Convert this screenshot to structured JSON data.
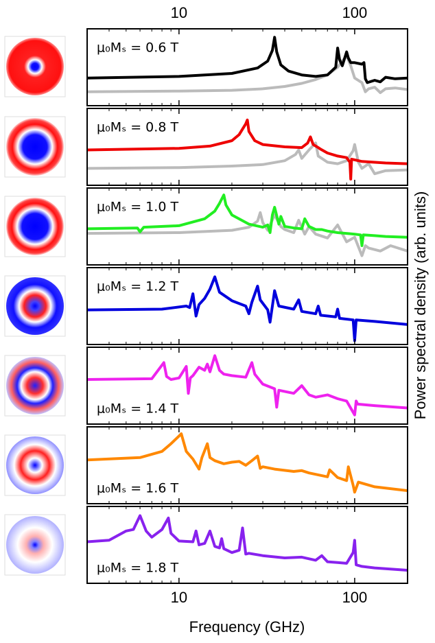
{
  "chart_data": {
    "type": "line",
    "xlabel": "Frequency (GHz)",
    "ylabel": "Power spectral density (arb. units)",
    "xscale": "log",
    "xlim": [
      3,
      200
    ],
    "xticks": [
      10,
      100
    ],
    "xminor": [
      3,
      4,
      5,
      6,
      7,
      8,
      9,
      20,
      30,
      40,
      50,
      60,
      70,
      80,
      90,
      200
    ],
    "ylim": [
      0,
      10
    ],
    "panels": [
      {
        "annotation": "μ₀Mₛ = 0.6 T",
        "label_corner": "upper left",
        "series": [
          {
            "color": "#bbbbbb",
            "x": [
              3,
              10,
              20,
              30,
              40,
              50,
              60,
              70,
              80,
              85,
              90,
              95,
              100,
              110,
              115,
              120,
              130,
              140,
              150,
              170,
              200
            ],
            "values": [
              1.8,
              1.9,
              2.0,
              2.2,
              2.5,
              2.9,
              3.4,
              4.0,
              5.0,
              5.8,
              6.5,
              5.2,
              3.6,
              3.0,
              1.8,
              2.2,
              2.4,
              1.7,
              2.2,
              2.3,
              2.1
            ]
          },
          {
            "color": "#000000",
            "x": [
              3,
              10,
              20,
              28,
              32,
              34,
              35,
              36,
              38,
              42,
              50,
              60,
              70,
              78,
              80,
              82,
              85,
              90,
              92,
              95,
              100,
              110,
              113,
              115,
              118,
              130,
              140,
              150,
              170,
              200
            ],
            "values": [
              3.6,
              3.8,
              4.2,
              4.9,
              5.8,
              7.2,
              8.9,
              7.0,
              5.3,
              4.5,
              4.0,
              3.8,
              4.0,
              5.0,
              7.5,
              6.0,
              5.2,
              7.0,
              6.2,
              5.6,
              5.6,
              5.4,
              5.6,
              3.5,
              3.0,
              3.3,
              3.1,
              3.7,
              3.5,
              3.6
            ]
          }
        ]
      },
      {
        "annotation": "μ₀Mₛ = 0.8 T",
        "label_corner": "upper left",
        "series": [
          {
            "color": "#bbbbbb",
            "x": [
              3,
              10,
              20,
              30,
              40,
              46,
              48,
              50,
              55,
              60,
              62,
              65,
              70,
              80,
              90,
              98,
              100,
              105,
              110,
              120,
              130,
              150,
              200
            ],
            "values": [
              2.2,
              2.3,
              2.5,
              2.7,
              3.2,
              4.0,
              4.6,
              3.5,
              4.6,
              5.5,
              3.8,
              3.5,
              3.0,
              2.8,
              3.2,
              4.5,
              5.3,
              3.0,
              2.2,
              2.8,
              1.5,
              1.9,
              2.0
            ]
          },
          {
            "color": "#ee0000",
            "x": [
              3,
              10,
              15,
              20,
              22,
              24,
              24.5,
              25,
              27,
              30,
              40,
              50,
              54,
              56,
              58,
              62,
              64,
              70,
              80,
              90,
              94,
              95,
              96,
              110,
              150,
              200
            ],
            "values": [
              4.6,
              4.8,
              5.1,
              5.8,
              6.6,
              8.0,
              8.5,
              7.0,
              5.8,
              5.3,
              5.0,
              4.9,
              5.5,
              6.3,
              5.3,
              4.9,
              4.7,
              4.2,
              3.8,
              3.6,
              3.0,
              0.8,
              3.4,
              3.1,
              2.9,
              2.8
            ]
          }
        ]
      },
      {
        "annotation": "μ₀Mₛ = 1.0 T",
        "label_corner": "upper left",
        "series": [
          {
            "color": "#bbbbbb",
            "x": [
              3,
              10,
              20,
              25,
              28,
              29,
              30,
              32,
              35,
              38,
              40,
              45,
              48,
              52,
              55,
              60,
              70,
              80,
              90,
              100,
              110,
              115,
              120,
              140,
              160,
              200
            ],
            "values": [
              4.1,
              4.2,
              4.5,
              4.9,
              5.7,
              6.8,
              5.5,
              4.5,
              6.5,
              5.0,
              4.6,
              4.2,
              5.8,
              4.0,
              5.0,
              4.0,
              3.5,
              5.2,
              3.0,
              3.6,
              1.2,
              2.5,
              2.2,
              1.8,
              2.5,
              1.8
            ]
          },
          {
            "color": "#22ee22",
            "x": [
              3,
              5.8,
              6,
              6.3,
              10,
              14,
              16,
              17,
              18,
              18.5,
              20,
              25,
              30,
              32,
              33,
              34,
              35,
              37,
              38,
              40,
              45,
              50,
              52,
              55,
              60,
              65,
              70,
              80,
              100,
              108,
              110,
              112,
              130,
              150,
              200
            ],
            "values": [
              4.7,
              4.8,
              4.3,
              4.9,
              5.1,
              6.0,
              7.0,
              8.0,
              9.1,
              7.8,
              6.5,
              5.3,
              4.9,
              5.2,
              4.2,
              6.5,
              7.5,
              5.3,
              6.3,
              5.0,
              4.8,
              4.7,
              6.0,
              5.0,
              4.6,
              4.6,
              4.4,
              4.2,
              4.0,
              3.9,
              2.5,
              3.9,
              3.8,
              3.7,
              3.6
            ]
          }
        ]
      },
      {
        "annotation": "μ₀Mₛ = 1.2 T",
        "label_corner": "upper left",
        "series": [
          {
            "color": "#0000dd",
            "x": [
              3,
              8,
              11,
              11.5,
              12,
              12.5,
              13,
              14,
              15,
              16,
              17,
              20,
              24,
              25,
              26,
              28,
              29,
              32,
              33,
              34,
              35,
              37,
              45,
              48,
              50,
              60,
              62,
              64,
              78,
              80,
              82,
              98,
              100,
              102,
              130,
              200
            ],
            "values": [
              4.5,
              4.6,
              5.0,
              4.8,
              6.6,
              3.7,
              5.2,
              6.0,
              7.2,
              8.8,
              6.8,
              5.7,
              5.0,
              4.0,
              5.5,
              7.6,
              5.8,
              4.5,
              2.9,
              5.0,
              7.0,
              5.0,
              4.6,
              5.8,
              4.3,
              4.0,
              5.0,
              3.8,
              3.6,
              4.6,
              3.4,
              3.2,
              0.5,
              3.2,
              3.0,
              2.6
            ]
          }
        ]
      },
      {
        "annotation": "μ₀Mₛ = 1.4 T",
        "label_corner": "lower left",
        "series": [
          {
            "color": "#ee22ee",
            "x": [
              3,
              7,
              8.2,
              8.5,
              9,
              10,
              11,
              11.3,
              11.6,
              12,
              13,
              14,
              14.5,
              15,
              16,
              17,
              18,
              20,
              24,
              26,
              27,
              30,
              35,
              36,
              37,
              45,
              50,
              55,
              60,
              70,
              80,
              90,
              100,
              102,
              104,
              130,
              200
            ],
            "values": [
              5.8,
              5.9,
              8.0,
              6.2,
              5.8,
              6.0,
              7.5,
              4.0,
              6.0,
              6.3,
              7.4,
              7.0,
              7.8,
              6.8,
              8.9,
              7.0,
              6.5,
              6.3,
              6.1,
              8.0,
              6.5,
              5.2,
              4.6,
              2.2,
              4.4,
              4.0,
              5.0,
              3.8,
              3.5,
              3.8,
              3.3,
              3.0,
              1.2,
              3.0,
              2.6,
              2.4,
              2.1
            ]
          }
        ]
      },
      {
        "annotation": "μ₀Mₛ = 1.6 T",
        "label_corner": "lower left",
        "series": [
          {
            "color": "#ff8800",
            "x": [
              3,
              6,
              8,
              9,
              10,
              10.3,
              11,
              12,
              13,
              13.5,
              14.5,
              15,
              16,
              18,
              20,
              22,
              24,
              26,
              28,
              29,
              30,
              35,
              45,
              50,
              55,
              70,
              72,
              80,
              90,
              92,
              98,
              100,
              105,
              130,
              200
            ],
            "values": [
              5.7,
              6.0,
              6.8,
              7.8,
              8.8,
              9.1,
              6.8,
              5.8,
              4.5,
              6.0,
              7.8,
              6.0,
              5.6,
              5.2,
              5.4,
              5.5,
              5.0,
              5.6,
              6.2,
              4.6,
              4.8,
              4.5,
              4.2,
              4.3,
              4.0,
              3.5,
              4.4,
              3.4,
              3.0,
              4.8,
              2.4,
              1.5,
              2.8,
              2.2,
              1.7
            ]
          }
        ]
      },
      {
        "annotation": "μ₀Mₛ = 1.8 T",
        "label_corner": "lower left",
        "series": [
          {
            "color": "#8822ee",
            "x": [
              3,
              4,
              5,
              5.5,
              6,
              6.5,
              7,
              8,
              8.7,
              9,
              10,
              12,
              12.5,
              13,
              14,
              15,
              16,
              17,
              17.5,
              18,
              20,
              22,
              23,
              24,
              25,
              30,
              40,
              50,
              60,
              65,
              70,
              80,
              90,
              98,
              100,
              102,
              110,
              130,
              200
            ],
            "values": [
              5.4,
              5.6,
              6.8,
              7.0,
              8.8,
              6.8,
              6.0,
              7.0,
              8.5,
              6.5,
              5.5,
              5.4,
              6.8,
              5.0,
              5.2,
              6.8,
              4.8,
              4.6,
              5.8,
              4.5,
              4.0,
              4.3,
              7.2,
              3.8,
              3.9,
              3.6,
              3.3,
              3.4,
              3.0,
              3.6,
              2.8,
              2.7,
              2.6,
              4.0,
              5.6,
              2.4,
              2.2,
              2.0,
              1.7
            ]
          }
        ]
      }
    ]
  }
}
